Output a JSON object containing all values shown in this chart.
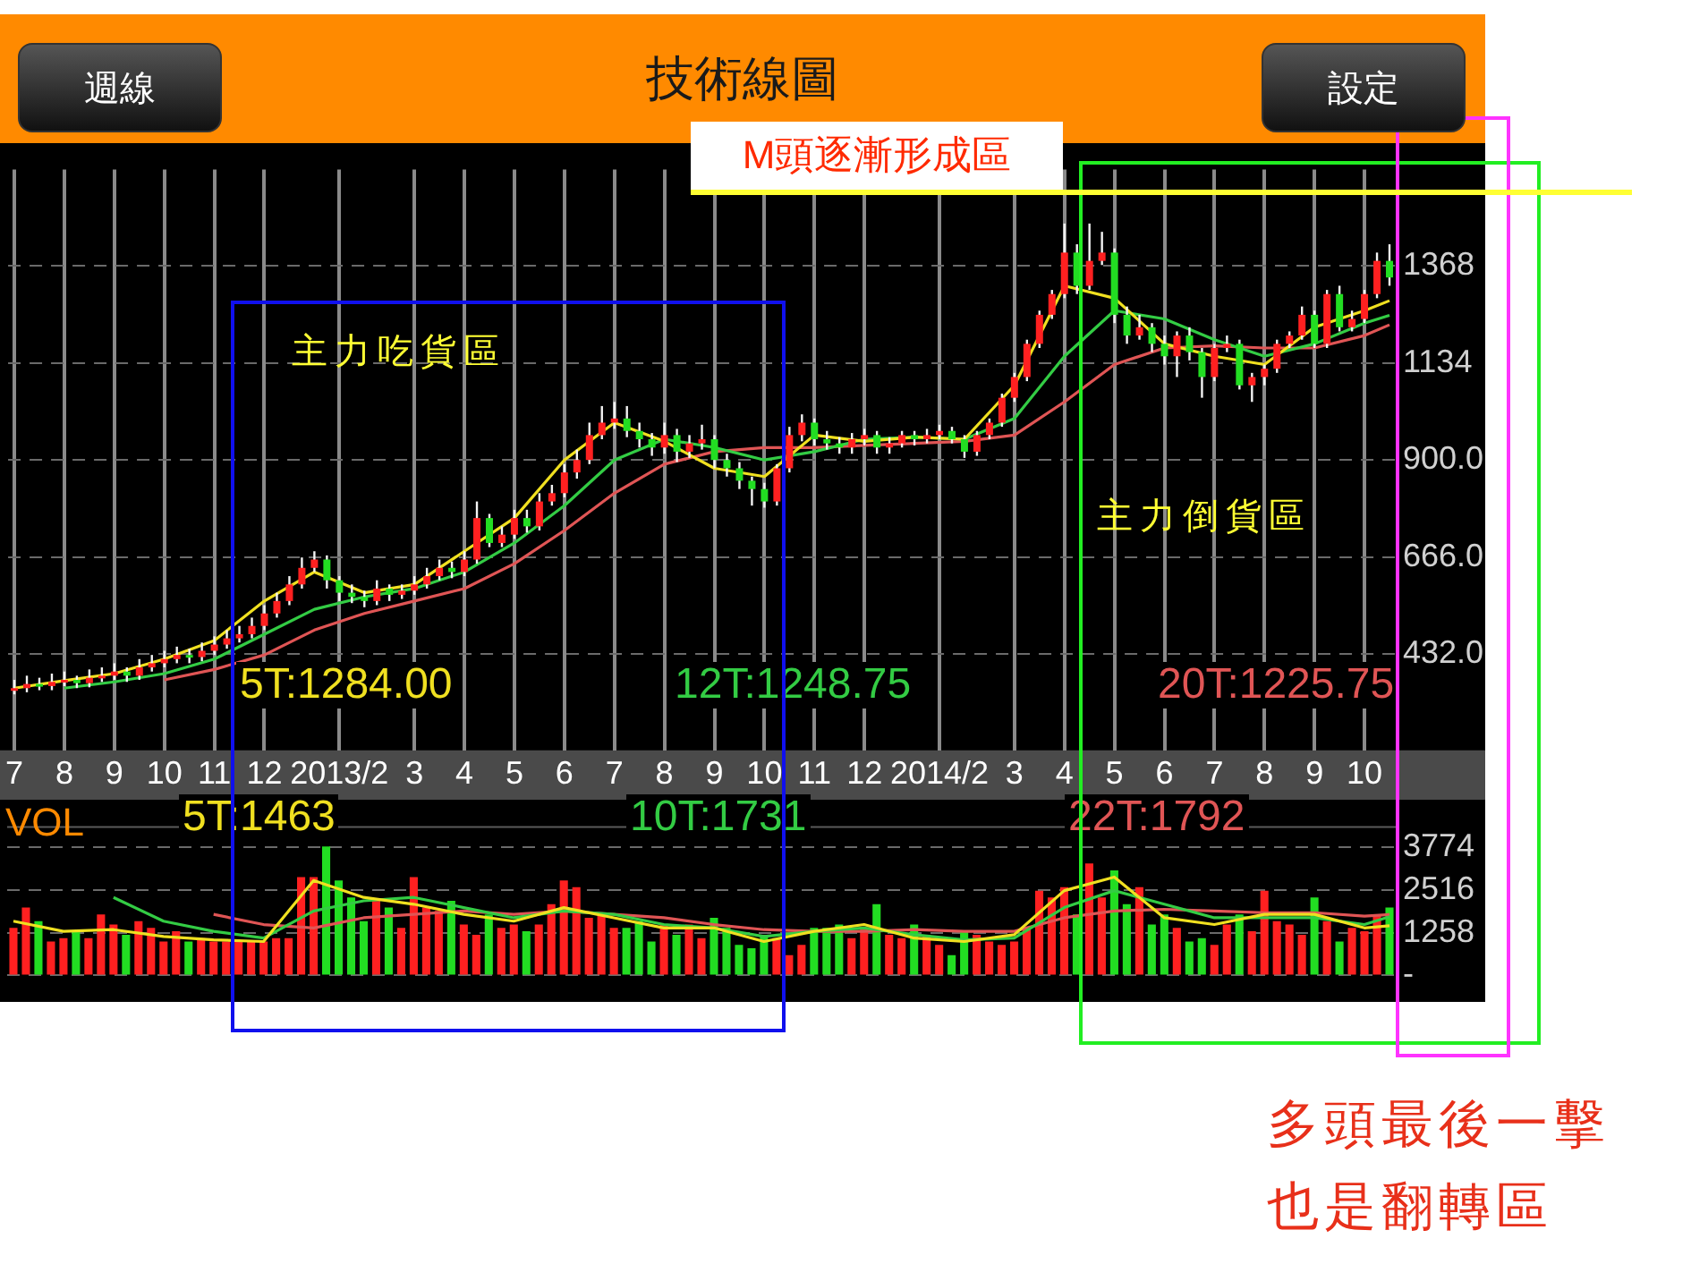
{
  "chart_data": [
    {
      "type": "candlestick",
      "title": "技術線圖",
      "annotations": [
        "週線",
        "設定",
        "主力吃貨區",
        "主力倒貨區",
        "M頭逐漸形成區",
        "多頭最後一擊也是翻轉區"
      ],
      "categories": [
        "7",
        null,
        null,
        null,
        "8",
        null,
        null,
        null,
        "9",
        null,
        null,
        null,
        "10",
        null,
        null,
        null,
        "11",
        null,
        null,
        null,
        "12",
        null,
        null,
        null,
        null,
        null,
        "2013/2",
        null,
        null,
        null,
        null,
        null,
        "3",
        null,
        null,
        null,
        "4",
        null,
        null,
        null,
        "5",
        null,
        null,
        null,
        "6",
        null,
        null,
        null,
        "7",
        null,
        null,
        null,
        "8",
        null,
        null,
        null,
        "9",
        null,
        null,
        null,
        "10",
        null,
        null,
        null,
        "11",
        null,
        null,
        null,
        "12",
        null,
        null,
        null,
        null,
        null,
        "2014/2",
        null,
        null,
        null,
        null,
        null,
        "3",
        null,
        null,
        null,
        "4",
        null,
        null,
        null,
        "5",
        null,
        null,
        null,
        "6",
        null,
        null,
        null,
        "7",
        null,
        null,
        null,
        "8",
        null,
        null,
        null,
        "9",
        null,
        null,
        null,
        "10",
        null,
        null
      ],
      "ohlc": [
        [
          345,
          370,
          335,
          350
        ],
        [
          350,
          380,
          340,
          360
        ],
        [
          360,
          375,
          345,
          355
        ],
        [
          355,
          385,
          345,
          365
        ],
        [
          365,
          390,
          355,
          370
        ],
        [
          370,
          380,
          350,
          362
        ],
        [
          362,
          395,
          352,
          375
        ],
        [
          375,
          400,
          365,
          380
        ],
        [
          380,
          410,
          370,
          390
        ],
        [
          390,
          400,
          365,
          380
        ],
        [
          380,
          420,
          370,
          400
        ],
        [
          400,
          430,
          390,
          410
        ],
        [
          410,
          440,
          400,
          420
        ],
        [
          420,
          450,
          410,
          430
        ],
        [
          430,
          445,
          410,
          425
        ],
        [
          425,
          460,
          415,
          440
        ],
        [
          440,
          475,
          430,
          455
        ],
        [
          455,
          490,
          445,
          470
        ],
        [
          470,
          500,
          460,
          480
        ],
        [
          480,
          520,
          470,
          500
        ],
        [
          500,
          550,
          490,
          530
        ],
        [
          530,
          580,
          520,
          560
        ],
        [
          560,
          620,
          550,
          600
        ],
        [
          600,
          665,
          590,
          640
        ],
        [
          640,
          680,
          630,
          660
        ],
        [
          660,
          670,
          590,
          610
        ],
        [
          610,
          620,
          560,
          580
        ],
        [
          580,
          600,
          555,
          570
        ],
        [
          570,
          585,
          545,
          560
        ],
        [
          560,
          610,
          550,
          590
        ],
        [
          590,
          600,
          560,
          575
        ],
        [
          575,
          600,
          565,
          585
        ],
        [
          585,
          620,
          575,
          600
        ],
        [
          600,
          640,
          590,
          620
        ],
        [
          620,
          660,
          610,
          640
        ],
        [
          640,
          655,
          615,
          630
        ],
        [
          630,
          680,
          620,
          660
        ],
        [
          660,
          800,
          650,
          760
        ],
        [
          760,
          770,
          690,
          700
        ],
        [
          700,
          740,
          690,
          720
        ],
        [
          720,
          780,
          710,
          760
        ],
        [
          760,
          780,
          725,
          740
        ],
        [
          740,
          820,
          730,
          800
        ],
        [
          800,
          840,
          790,
          820
        ],
        [
          820,
          890,
          810,
          870
        ],
        [
          870,
          925,
          855,
          900
        ],
        [
          900,
          990,
          890,
          960
        ],
        [
          960,
          1030,
          950,
          990
        ],
        [
          990,
          1040,
          975,
          1000
        ],
        [
          1000,
          1030,
          955,
          970
        ],
        [
          970,
          990,
          930,
          950
        ],
        [
          950,
          965,
          910,
          930
        ],
        [
          930,
          990,
          915,
          960
        ],
        [
          960,
          975,
          895,
          920
        ],
        [
          920,
          960,
          905,
          940
        ],
        [
          940,
          985,
          925,
          950
        ],
        [
          950,
          960,
          880,
          900
        ],
        [
          900,
          915,
          860,
          880
        ],
        [
          880,
          895,
          830,
          850
        ],
        [
          850,
          860,
          790,
          830
        ],
        [
          830,
          845,
          785,
          800
        ],
        [
          800,
          890,
          790,
          880
        ],
        [
          880,
          980,
          870,
          960
        ],
        [
          960,
          1010,
          945,
          990
        ],
        [
          990,
          1000,
          935,
          950
        ],
        [
          950,
          970,
          925,
          940
        ],
        [
          940,
          955,
          915,
          930
        ],
        [
          930,
          965,
          915,
          950
        ],
        [
          950,
          975,
          935,
          960
        ],
        [
          960,
          970,
          915,
          930
        ],
        [
          930,
          955,
          915,
          940
        ],
        [
          940,
          970,
          930,
          960
        ],
        [
          960,
          970,
          935,
          950
        ],
        [
          950,
          975,
          940,
          960
        ],
        [
          960,
          985,
          950,
          970
        ],
        [
          970,
          980,
          940,
          950
        ],
        [
          950,
          960,
          905,
          920
        ],
        [
          920,
          970,
          910,
          960
        ],
        [
          960,
          1000,
          950,
          990
        ],
        [
          990,
          1060,
          980,
          1050
        ],
        [
          1050,
          1110,
          1040,
          1100
        ],
        [
          1100,
          1190,
          1090,
          1180
        ],
        [
          1180,
          1260,
          1170,
          1250
        ],
        [
          1250,
          1310,
          1240,
          1300
        ],
        [
          1300,
          1470,
          1290,
          1400
        ],
        [
          1400,
          1420,
          1300,
          1320
        ],
        [
          1320,
          1470,
          1310,
          1380
        ],
        [
          1380,
          1450,
          1370,
          1400
        ],
        [
          1400,
          1410,
          1230,
          1250
        ],
        [
          1250,
          1270,
          1180,
          1200
        ],
        [
          1200,
          1250,
          1190,
          1220
        ],
        [
          1220,
          1230,
          1160,
          1180
        ],
        [
          1180,
          1200,
          1130,
          1150
        ],
        [
          1150,
          1210,
          1100,
          1200
        ],
        [
          1200,
          1220,
          1140,
          1160
        ],
        [
          1160,
          1170,
          1050,
          1100
        ],
        [
          1100,
          1180,
          1090,
          1170
        ],
        [
          1170,
          1200,
          1160,
          1180
        ],
        [
          1180,
          1190,
          1070,
          1080
        ],
        [
          1080,
          1110,
          1040,
          1100
        ],
        [
          1100,
          1130,
          1080,
          1120
        ],
        [
          1120,
          1190,
          1110,
          1180
        ],
        [
          1180,
          1210,
          1170,
          1200
        ],
        [
          1200,
          1270,
          1190,
          1250
        ],
        [
          1250,
          1260,
          1170,
          1180
        ],
        [
          1180,
          1310,
          1170,
          1300
        ],
        [
          1300,
          1320,
          1210,
          1220
        ],
        [
          1220,
          1260,
          1210,
          1240
        ],
        [
          1240,
          1310,
          1230,
          1300
        ],
        [
          1300,
          1400,
          1290,
          1380
        ],
        [
          1380,
          1420,
          1320,
          1340
        ]
      ],
      "colors": [
        "#ff2020",
        "#ff2020",
        "#22dd22",
        "#ff2020",
        "#ff2020",
        "#22dd22",
        "#ff2020",
        "#ff2020",
        "#ff2020",
        "#22dd22",
        "#ff2020",
        "#ff2020",
        "#ff2020",
        "#ff2020",
        "#22dd22",
        "#ff2020",
        "#ff2020",
        "#ff2020",
        "#ff2020",
        "#ff2020",
        "#ff2020",
        "#ff2020",
        "#ff2020",
        "#ff2020",
        "#ff2020",
        "#22dd22",
        "#22dd22",
        "#22dd22",
        "#22dd22",
        "#ff2020",
        "#22dd22",
        "#ff2020",
        "#ff2020",
        "#ff2020",
        "#ff2020",
        "#22dd22",
        "#ff2020",
        "#ff2020",
        "#22dd22",
        "#ff2020",
        "#ff2020",
        "#22dd22",
        "#ff2020",
        "#ff2020",
        "#ff2020",
        "#ff2020",
        "#ff2020",
        "#ff2020",
        "#ff2020",
        "#22dd22",
        "#22dd22",
        "#22dd22",
        "#ff2020",
        "#22dd22",
        "#ff2020",
        "#ff2020",
        "#22dd22",
        "#22dd22",
        "#22dd22",
        "#22dd22",
        "#22dd22",
        "#ff2020",
        "#ff2020",
        "#ff2020",
        "#22dd22",
        "#22dd22",
        "#22dd22",
        "#ff2020",
        "#ff2020",
        "#22dd22",
        "#ff2020",
        "#ff2020",
        "#22dd22",
        "#ff2020",
        "#ff2020",
        "#22dd22",
        "#22dd22",
        "#ff2020",
        "#ff2020",
        "#ff2020",
        "#ff2020",
        "#ff2020",
        "#ff2020",
        "#ff2020",
        "#ff2020",
        "#22dd22",
        "#ff2020",
        "#ff2020",
        "#22dd22",
        "#22dd22",
        "#ff2020",
        "#22dd22",
        "#22dd22",
        "#ff2020",
        "#22dd22",
        "#22dd22",
        "#ff2020",
        "#ff2020",
        "#22dd22",
        "#ff2020",
        "#ff2020",
        "#ff2020",
        "#ff2020",
        "#ff2020",
        "#22dd22",
        "#ff2020",
        "#22dd22",
        "#ff2020",
        "#ff2020",
        "#ff2020",
        "#22dd22"
      ],
      "series": [
        {
          "type": "line",
          "name": "5T:1284.00",
          "color": "#f0e020",
          "values": [
            350,
            null,
            null,
            null,
            368,
            null,
            null,
            null,
            385,
            null,
            null,
            null,
            420,
            null,
            null,
            null,
            465,
            null,
            null,
            null,
            560,
            null,
            null,
            null,
            630,
            null,
            null,
            null,
            580,
            null,
            null,
            null,
            600,
            null,
            null,
            null,
            680,
            null,
            null,
            null,
            760,
            null,
            null,
            null,
            900,
            null,
            null,
            null,
            990,
            null,
            null,
            null,
            945,
            null,
            null,
            null,
            880,
            null,
            null,
            null,
            860,
            null,
            null,
            null,
            960,
            null,
            null,
            null,
            945,
            null,
            null,
            null,
            955,
            null,
            null,
            null,
            950,
            null,
            null,
            null,
            1080,
            null,
            null,
            null,
            1320,
            null,
            null,
            null,
            1290,
            null,
            null,
            null,
            1180,
            null,
            null,
            null,
            1150,
            null,
            null,
            null,
            1130,
            null,
            null,
            null,
            1220,
            null,
            null,
            null,
            1260,
            null,
            1284
          ]
        },
        {
          "type": "line",
          "name": "12T:1248.75",
          "color": "#33cc44",
          "values": [
            null,
            null,
            null,
            null,
            350,
            null,
            null,
            null,
            365,
            null,
            null,
            null,
            385,
            null,
            null,
            null,
            420,
            null,
            null,
            null,
            480,
            null,
            null,
            null,
            540,
            null,
            null,
            null,
            570,
            null,
            null,
            null,
            590,
            null,
            null,
            null,
            630,
            null,
            null,
            null,
            700,
            null,
            null,
            null,
            790,
            null,
            null,
            null,
            900,
            null,
            null,
            null,
            950,
            null,
            null,
            null,
            930,
            null,
            null,
            null,
            900,
            null,
            null,
            null,
            920,
            null,
            null,
            null,
            950,
            null,
            null,
            null,
            955,
            null,
            null,
            null,
            950,
            null,
            null,
            null,
            1000,
            null,
            null,
            null,
            1150,
            null,
            null,
            null,
            1260,
            null,
            null,
            null,
            1240,
            null,
            null,
            null,
            1190,
            null,
            null,
            null,
            1150,
            null,
            null,
            null,
            1180,
            null,
            null,
            null,
            1230,
            null,
            1248.75
          ]
        },
        {
          "type": "line",
          "name": "20T:1225.75",
          "color": "#e05555",
          "values": [
            null,
            null,
            null,
            null,
            null,
            null,
            null,
            null,
            null,
            null,
            null,
            null,
            370,
            null,
            null,
            null,
            395,
            null,
            null,
            null,
            430,
            null,
            null,
            null,
            490,
            null,
            null,
            null,
            530,
            null,
            null,
            null,
            560,
            null,
            null,
            null,
            590,
            null,
            null,
            null,
            650,
            null,
            null,
            null,
            730,
            null,
            null,
            null,
            820,
            null,
            null,
            null,
            890,
            null,
            null,
            null,
            920,
            null,
            null,
            null,
            930,
            null,
            null,
            null,
            930,
            null,
            null,
            null,
            935,
            null,
            null,
            null,
            940,
            null,
            null,
            null,
            945,
            null,
            null,
            null,
            960,
            null,
            null,
            null,
            1040,
            null,
            null,
            null,
            1130,
            null,
            null,
            null,
            1170,
            null,
            null,
            null,
            1175,
            null,
            null,
            null,
            1170,
            null,
            null,
            null,
            1170,
            null,
            null,
            null,
            1200,
            null,
            1225.75
          ]
        }
      ],
      "ylim": [
        200,
        1600
      ],
      "yticks": [
        {
          "value": 432,
          "label": "432.0"
        },
        {
          "value": 666,
          "label": "666.0"
        },
        {
          "value": 900,
          "label": "900.0"
        },
        1134,
        1368
      ],
      "grid": true
    },
    {
      "type": "bar",
      "title": "VOL",
      "categories": [
        "7",
        null,
        null,
        null,
        "8",
        null,
        null,
        null,
        "9",
        null,
        null,
        null,
        "10",
        null,
        null,
        null,
        "11",
        null,
        null,
        null,
        "12",
        null,
        null,
        null,
        null,
        null,
        "2013/2",
        null,
        null,
        null,
        null,
        null,
        "3",
        null,
        null,
        null,
        "4",
        null,
        null,
        null,
        "5",
        null,
        null,
        null,
        "6",
        null,
        null,
        null,
        "7",
        null,
        null,
        null,
        "8",
        null,
        null,
        null,
        "9",
        null,
        null,
        null,
        "10",
        null,
        null,
        null,
        "11",
        null,
        null,
        null,
        "12",
        null,
        null,
        null,
        null,
        null,
        "2014/2",
        null,
        null,
        null,
        null,
        null,
        "3",
        null,
        null,
        null,
        "4",
        null,
        null,
        null,
        "5",
        null,
        null,
        null,
        "6",
        null,
        null,
        null,
        "7",
        null,
        null,
        null,
        "8",
        null,
        null,
        null,
        "9",
        null,
        null,
        null,
        "10",
        null,
        null
      ],
      "values": [
        1400,
        2000,
        1600,
        1000,
        1100,
        1300,
        1100,
        1800,
        1500,
        1200,
        1600,
        1400,
        1000,
        1300,
        1000,
        1100,
        1000,
        1000,
        1000,
        1000,
        1000,
        1100,
        1100,
        2900,
        2900,
        3800,
        2800,
        2300,
        1600,
        2200,
        2000,
        1400,
        2900,
        2000,
        1900,
        2200,
        1500,
        1200,
        1800,
        1400,
        1500,
        1300,
        1500,
        2100,
        2800,
        2600,
        1700,
        1800,
        1400,
        1400,
        1600,
        1000,
        1500,
        1200,
        1500,
        1100,
        1700,
        1400,
        900,
        800,
        1200,
        1100,
        600,
        900,
        1400,
        1400,
        1500,
        1100,
        1400,
        2100,
        1200,
        1100,
        1500,
        1200,
        900,
        600,
        1300,
        1200,
        1000,
        900,
        1000,
        1400,
        2500,
        2300,
        2600,
        1800,
        3300,
        2300,
        3100,
        2100,
        2600,
        1500,
        1800,
        1400,
        1000,
        1100,
        900,
        1500,
        1800,
        1300,
        2500,
        1600,
        1500,
        1200,
        2300,
        1600,
        1000,
        1400,
        1300,
        1800,
        2000
      ],
      "colors": [
        "#ff2020",
        "#ff2020",
        "#22dd22",
        "#ff2020",
        "#ff2020",
        "#22dd22",
        "#ff2020",
        "#ff2020",
        "#ff2020",
        "#22dd22",
        "#ff2020",
        "#ff2020",
        "#ff2020",
        "#ff2020",
        "#22dd22",
        "#ff2020",
        "#ff2020",
        "#ff2020",
        "#ff2020",
        "#ff2020",
        "#ff2020",
        "#ff2020",
        "#ff2020",
        "#ff2020",
        "#ff2020",
        "#22dd22",
        "#22dd22",
        "#22dd22",
        "#22dd22",
        "#ff2020",
        "#22dd22",
        "#ff2020",
        "#ff2020",
        "#ff2020",
        "#ff2020",
        "#22dd22",
        "#ff2020",
        "#ff2020",
        "#22dd22",
        "#ff2020",
        "#ff2020",
        "#22dd22",
        "#ff2020",
        "#ff2020",
        "#ff2020",
        "#ff2020",
        "#ff2020",
        "#ff2020",
        "#ff2020",
        "#22dd22",
        "#22dd22",
        "#22dd22",
        "#ff2020",
        "#22dd22",
        "#ff2020",
        "#ff2020",
        "#22dd22",
        "#22dd22",
        "#22dd22",
        "#22dd22",
        "#22dd22",
        "#ff2020",
        "#ff2020",
        "#ff2020",
        "#22dd22",
        "#22dd22",
        "#22dd22",
        "#ff2020",
        "#ff2020",
        "#22dd22",
        "#ff2020",
        "#ff2020",
        "#22dd22",
        "#ff2020",
        "#ff2020",
        "#22dd22",
        "#22dd22",
        "#ff2020",
        "#ff2020",
        "#ff2020",
        "#ff2020",
        "#ff2020",
        "#ff2020",
        "#ff2020",
        "#ff2020",
        "#22dd22",
        "#ff2020",
        "#ff2020",
        "#22dd22",
        "#22dd22",
        "#ff2020",
        "#22dd22",
        "#22dd22",
        "#ff2020",
        "#22dd22",
        "#22dd22",
        "#ff2020",
        "#ff2020",
        "#22dd22",
        "#ff2020",
        "#ff2020",
        "#ff2020",
        "#ff2020",
        "#ff2020",
        "#22dd22",
        "#ff2020",
        "#22dd22",
        "#ff2020",
        "#ff2020",
        "#ff2020",
        "#22dd22"
      ],
      "series": [
        {
          "type": "line",
          "name": "5T:1463",
          "color": "#f0e020",
          "values": [
            1600,
            null,
            null,
            null,
            1300,
            null,
            null,
            null,
            1350,
            null,
            null,
            null,
            1150,
            null,
            null,
            null,
            1050,
            null,
            null,
            null,
            1000,
            null,
            null,
            null,
            2800,
            null,
            null,
            null,
            2300,
            null,
            null,
            null,
            2100,
            null,
            null,
            null,
            1800,
            null,
            null,
            null,
            1600,
            null,
            null,
            null,
            2000,
            null,
            null,
            null,
            1700,
            null,
            null,
            null,
            1400,
            null,
            null,
            null,
            1400,
            null,
            null,
            null,
            1000,
            null,
            null,
            null,
            1300,
            null,
            null,
            null,
            1500,
            null,
            null,
            null,
            1100,
            null,
            null,
            null,
            1000,
            null,
            null,
            null,
            1200,
            null,
            null,
            null,
            2500,
            null,
            null,
            null,
            2900,
            null,
            null,
            null,
            1700,
            null,
            null,
            null,
            1500,
            null,
            null,
            null,
            1800,
            null,
            null,
            null,
            1800,
            null,
            null,
            null,
            1400,
            null,
            1463
          ]
        },
        {
          "type": "line",
          "name": "10T:1731",
          "color": "#33cc44",
          "values": [
            null,
            null,
            null,
            null,
            null,
            null,
            null,
            null,
            2300,
            null,
            null,
            null,
            1600,
            null,
            null,
            null,
            1300,
            null,
            null,
            null,
            1100,
            null,
            null,
            null,
            1900,
            null,
            null,
            null,
            2200,
            null,
            null,
            null,
            2300,
            null,
            null,
            null,
            2000,
            null,
            null,
            null,
            1700,
            null,
            null,
            null,
            1900,
            null,
            null,
            null,
            1800,
            null,
            null,
            null,
            1500,
            null,
            null,
            null,
            1400,
            null,
            null,
            null,
            1150,
            null,
            null,
            null,
            1300,
            null,
            null,
            null,
            1400,
            null,
            null,
            null,
            1200,
            null,
            null,
            null,
            1050,
            null,
            null,
            null,
            1100,
            null,
            null,
            null,
            2000,
            null,
            null,
            null,
            2500,
            null,
            null,
            null,
            2100,
            null,
            null,
            null,
            1700,
            null,
            null,
            null,
            1700,
            null,
            null,
            null,
            1700,
            null,
            null,
            null,
            1500,
            null,
            1731
          ]
        },
        {
          "type": "line",
          "name": "22T:1792",
          "color": "#e05555",
          "values": [
            null,
            null,
            null,
            null,
            null,
            null,
            null,
            null,
            null,
            null,
            null,
            null,
            null,
            null,
            null,
            null,
            1800,
            null,
            null,
            null,
            1500,
            null,
            null,
            null,
            1400,
            null,
            null,
            null,
            1700,
            null,
            null,
            null,
            1800,
            null,
            null,
            null,
            1900,
            null,
            null,
            null,
            1800,
            null,
            null,
            null,
            1900,
            null,
            null,
            null,
            1800,
            null,
            null,
            null,
            1700,
            null,
            null,
            null,
            1500,
            null,
            null,
            null,
            1350,
            null,
            null,
            null,
            1300,
            null,
            null,
            null,
            1300,
            null,
            null,
            null,
            1350,
            null,
            null,
            null,
            1300,
            null,
            null,
            null,
            1300,
            null,
            null,
            null,
            1700,
            null,
            null,
            null,
            1900,
            null,
            null,
            null,
            1950,
            null,
            null,
            null,
            1900,
            null,
            null,
            null,
            1850,
            null,
            null,
            null,
            1850,
            null,
            null,
            null,
            1750,
            null,
            1792
          ]
        }
      ],
      "ylim": [
        0,
        4400
      ],
      "yticks": [
        {
          "value": 0,
          "label": "-"
        },
        1258,
        2516,
        3774
      ],
      "grid": "y",
      "tick_labels": "y"
    }
  ]
}
